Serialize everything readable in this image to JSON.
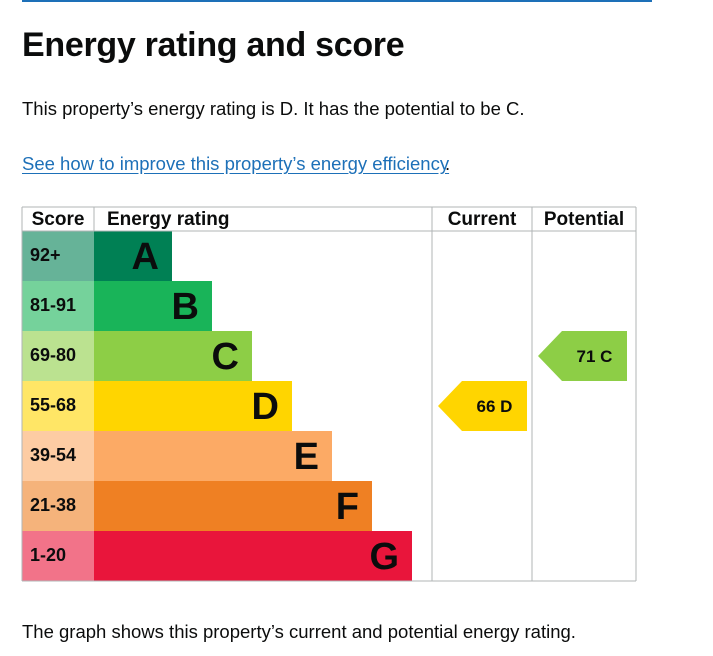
{
  "page": {
    "title": "Energy rating and score",
    "summary": "This property’s energy rating is D. It has the potential to be C.",
    "improve_link": "See how to improve this property’s energy efficiency",
    "improve_punct": ".",
    "footer": "The graph shows this property’s current and potential energy rating."
  },
  "chart_data": {
    "type": "bar",
    "headers": {
      "score": "Score",
      "rating": "Energy rating",
      "current": "Current",
      "potential": "Potential"
    },
    "bands": [
      {
        "score": "92+",
        "letter": "A",
        "color": "#008054",
        "score_bg": "#66b398"
      },
      {
        "score": "81-91",
        "letter": "B",
        "color": "#19b459",
        "score_bg": "#75d29b"
      },
      {
        "score": "69-80",
        "letter": "C",
        "color": "#8dce46",
        "score_bg": "#bbe290"
      },
      {
        "score": "55-68",
        "letter": "D",
        "color": "#ffd500",
        "score_bg": "#ffe666"
      },
      {
        "score": "39-54",
        "letter": "E",
        "color": "#fcaa65",
        "score_bg": "#fdcca3"
      },
      {
        "score": "21-38",
        "letter": "F",
        "color": "#ef8023",
        "score_bg": "#f5b37b"
      },
      {
        "score": "1-20",
        "letter": "G",
        "color": "#e9153b",
        "score_bg": "#f27389"
      }
    ],
    "current": {
      "value": 66,
      "letter": "D",
      "label": "66  D",
      "color": "#ffd500"
    },
    "potential": {
      "value": 71,
      "letter": "C",
      "label": "71  C",
      "color": "#8dce46"
    }
  }
}
